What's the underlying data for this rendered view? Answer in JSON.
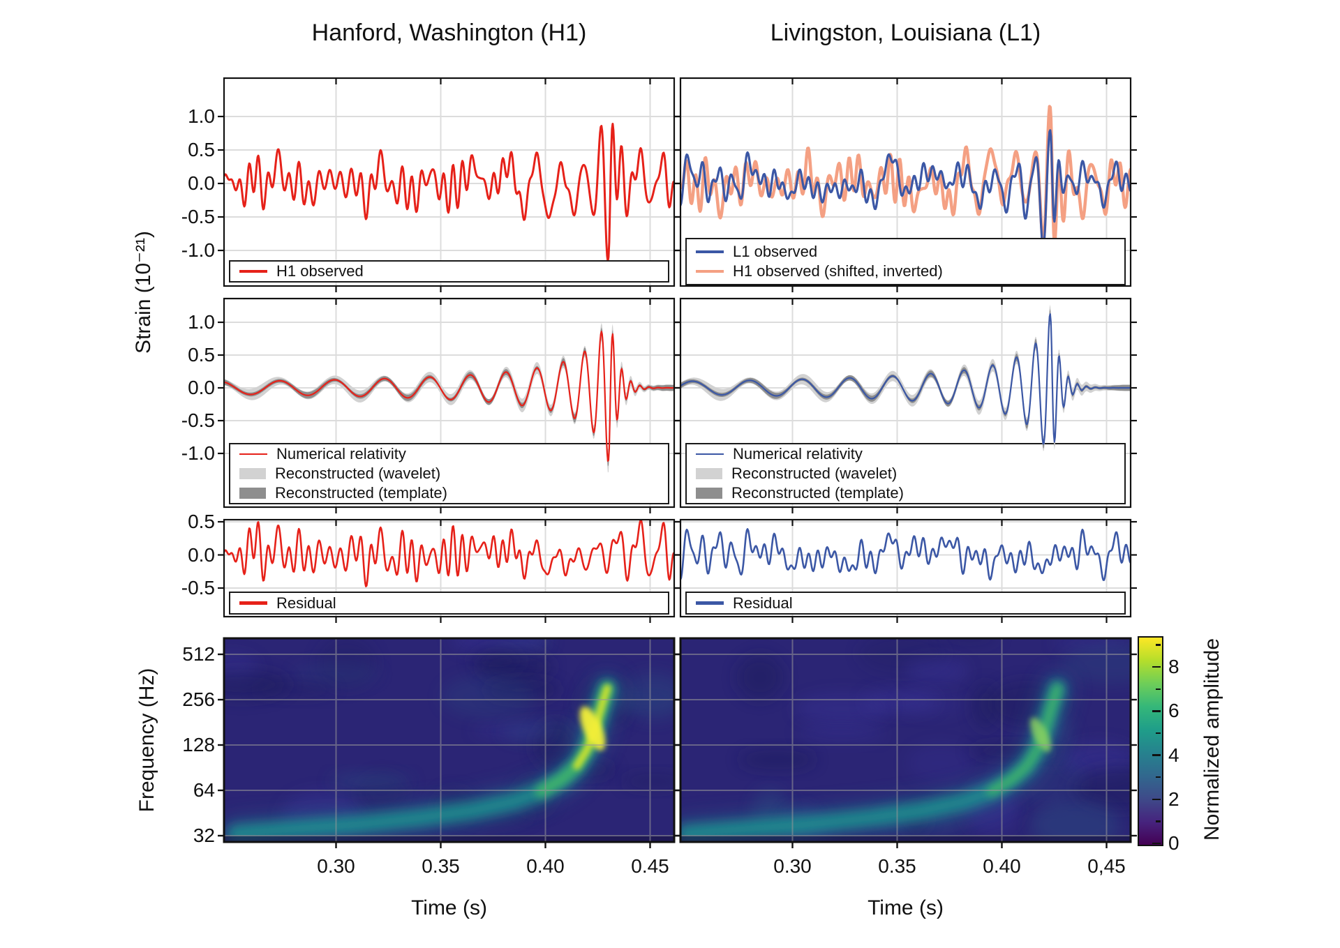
{
  "figure": {
    "columns": [
      {
        "id": "h1",
        "title": "Hanford, Washington (H1)",
        "xlabel": "Time (s)",
        "xtick_labels": [
          "0.30",
          "0.35",
          "0.40",
          "0.45"
        ]
      },
      {
        "id": "l1",
        "title": "Livingston, Louisiana (L1)",
        "xlabel": "Time (s)",
        "xtick_labels": [
          "0.30",
          "0.35",
          "0.40",
          "0,45"
        ]
      }
    ],
    "ylabel_strain": "Strain (10⁻²¹)",
    "ylabel_frequency": "Frequency (Hz)",
    "colorbar": {
      "label": "Normalized amplitude",
      "ticks": [
        "0",
        "2",
        "4",
        "6",
        "8"
      ],
      "tick_values": [
        0,
        2,
        4,
        6,
        8
      ],
      "minor_tick_values": [
        1,
        3,
        5,
        7,
        9
      ],
      "vmin": 0,
      "vmax": 9.4,
      "viridis": [
        "#440154",
        "#46247e",
        "#3e4a89",
        "#31688e",
        "#26828e",
        "#1f9e89",
        "#35b779",
        "#6ece58",
        "#b5de2b",
        "#fde725"
      ]
    },
    "legends": {
      "h1_row1": [
        {
          "label": "H1 observed",
          "swatch": "line",
          "color": "#e62119"
        }
      ],
      "l1_row1": [
        {
          "label": "L1 observed",
          "swatch": "line",
          "color": "#3b57a5"
        },
        {
          "label": "H1 observed (shifted, inverted)",
          "swatch": "line",
          "color": "#f4a083"
        }
      ],
      "row2": [
        {
          "label": "Numerical relativity",
          "swatch": "thinline",
          "color": "auto"
        },
        {
          "label": "Reconstructed (wavelet)",
          "swatch": "patch",
          "color": "#d2d2d2"
        },
        {
          "label": "Reconstructed (template)",
          "swatch": "patch",
          "color": "#8e8e8e"
        }
      ],
      "row3": [
        {
          "label": "Residual",
          "swatch": "line",
          "color": "auto"
        }
      ]
    },
    "colors": {
      "h1": "#e62119",
      "l1": "#3b57a5",
      "h1_shifted": "#f4a083",
      "wavelet": "#d2d2d2",
      "template": "#8e8e8e",
      "grid": "#dcdcdc",
      "spectro_bg": "#2b2575",
      "spectro_grid": "#999999",
      "track_halo": "#27688a",
      "track_teal": "#1f9390",
      "track_green": "#41b46a",
      "track_bright": "#cde32d",
      "track_core": "#f4ef38",
      "blob_dark": "#1f1a5c",
      "blob_light": "#383294",
      "blob_blue": "#2a4b82"
    }
  },
  "chart_data": {
    "type": "multi-panel",
    "description": "GW150914 gravitational-wave event: strain time series and time-frequency spectrograms for LIGO Hanford (H1) and Livingston (L1).",
    "time_range_s": [
      0.2465,
      0.4615
    ],
    "time_ticks_s": [
      0.3,
      0.35,
      0.4,
      0.45
    ],
    "strain_rows": {
      "row1_yticks": [
        1.0,
        0.5,
        0.0,
        -0.5,
        -1.0
      ],
      "row1_tick_labels": [
        "1.0",
        "0.5",
        "0.0",
        "-0.5",
        "-1.0"
      ],
      "row3_yticks": [
        0.5,
        0.0,
        -0.5
      ],
      "row3_tick_labels": [
        "0.5",
        "0.0",
        "-0.5"
      ],
      "freq_yticks": [
        512,
        256,
        128,
        64,
        32
      ],
      "freq_tick_labels": [
        "512",
        "256",
        "128",
        "64",
        "32"
      ]
    },
    "signal_model": {
      "chirp": {
        "t_ref": 0.2465,
        "t_c": 0.437,
        "f0_hz": 34,
        "freq_exponent": 0.5,
        "f_max_hz": 230,
        "t_merge": 0.4305,
        "amp0": 0.08,
        "amp_exponent": 0.75,
        "ringdown": {
          "f_hz": 230,
          "tau_s": 0.0042
        },
        "nr_scale": 1.2,
        "l1_shift_s": 0.0069,
        "l1_inverted": true
      },
      "noise": {
        "n_components": 14,
        "freq_range_hz": [
          32,
          265
        ],
        "amplitude": 0.22,
        "drift": {
          "n": 2,
          "freq_range_hz": [
            9,
            22
          ],
          "amplitude": 0.055
        },
        "seeds": {
          "h1": 20,
          "l1": 77
        }
      },
      "bands": {
        "wavelet_halfwidth": [
          0.055,
          0.115
        ],
        "template_halfwidth": [
          0.03,
          0.052
        ],
        "wobble_freqs_hz": [
          23,
          41
        ],
        "wobble_amps": [
          0.018,
          0.012
        ]
      }
    },
    "panels": [
      {
        "id": "h1-observed",
        "row": 1,
        "column": "h1",
        "type": "line",
        "yticks": [
          1.0,
          0.5,
          0.0,
          -0.5,
          -1.0
        ],
        "series": [
          "H1 observed"
        ],
        "peak_strain": 1.1,
        "peak_time_s": 0.425
      },
      {
        "id": "l1-observed",
        "row": 1,
        "column": "l1",
        "type": "line",
        "yticks": [
          1.0,
          0.5,
          0.0,
          -0.5,
          -1.0
        ],
        "series": [
          "L1 observed",
          "H1 observed (shifted, inverted)"
        ],
        "peak_strain": 1.1,
        "peak_time_s": 0.425
      },
      {
        "id": "h1-reconstruction",
        "row": 2,
        "column": "h1",
        "type": "line",
        "yticks": [
          1.0,
          0.5,
          0.0,
          -0.5,
          -1.0
        ],
        "series": [
          "Numerical relativity",
          "Reconstructed (wavelet)",
          "Reconstructed (template)"
        ],
        "peak_strain": 1.25
      },
      {
        "id": "l1-reconstruction",
        "row": 2,
        "column": "l1",
        "type": "line",
        "yticks": [
          1.0,
          0.5,
          0.0,
          -0.5,
          -1.0
        ],
        "series": [
          "Numerical relativity",
          "Reconstructed (wavelet)",
          "Reconstructed (template)"
        ],
        "peak_strain": 1.25
      },
      {
        "id": "h1-residual",
        "row": 3,
        "column": "h1",
        "type": "line",
        "yticks": [
          0.5,
          0.0,
          -0.5
        ],
        "series": [
          "Residual"
        ],
        "rms_strain": 0.15
      },
      {
        "id": "l1-residual",
        "row": 3,
        "column": "l1",
        "type": "line",
        "yticks": [
          0.5,
          0.0,
          -0.5
        ],
        "series": [
          "Residual"
        ],
        "rms_strain": 0.15
      },
      {
        "id": "h1-spectrogram",
        "row": 4,
        "column": "h1",
        "type": "heatmap",
        "freq_ticks_hz": [
          512,
          256,
          128,
          64,
          32
        ],
        "peak_normalized_amplitude": 9
      },
      {
        "id": "l1-spectrogram",
        "row": 4,
        "column": "l1",
        "type": "heatmap",
        "freq_ticks_hz": [
          512,
          256,
          128,
          64,
          32
        ],
        "peak_normalized_amplitude": 7
      }
    ],
    "spectrogram": {
      "freq_range_hz": [
        29,
        650
      ],
      "freq_ticks_hz": [
        512,
        256,
        128,
        64,
        32
      ],
      "chirp_track_t_f": [
        [
          0.252,
          33
        ],
        [
          0.28,
          35.5
        ],
        [
          0.31,
          38
        ],
        [
          0.34,
          42
        ],
        [
          0.365,
          47
        ],
        [
          0.385,
          54
        ],
        [
          0.398,
          63
        ],
        [
          0.408,
          76
        ],
        [
          0.415,
          93
        ],
        [
          0.42,
          120
        ],
        [
          0.4235,
          162
        ],
        [
          0.426,
          212
        ],
        [
          0.428,
          262
        ],
        [
          0.4295,
          305
        ]
      ],
      "l1_track_shift_s": -0.003,
      "blob_count": 26,
      "blob_seeds": {
        "h1": 5,
        "l1": 9
      }
    }
  }
}
